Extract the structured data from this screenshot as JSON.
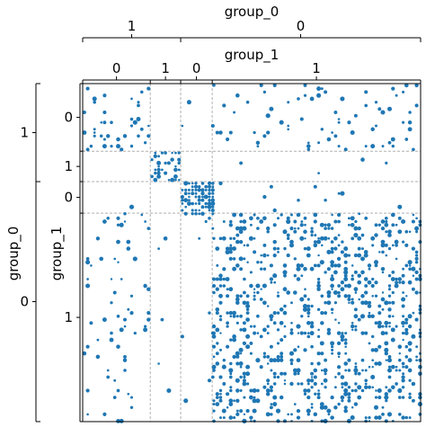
{
  "chart_data": {
    "type": "scatter",
    "title": "",
    "color": "#1f77b4",
    "grid_color": "#b0b0b0",
    "levels": {
      "outer_title": "group_0",
      "inner_title": "group_1",
      "outer": [
        {
          "label": "1",
          "start": 0,
          "end": 87
        },
        {
          "label": "0",
          "start": 87,
          "end": 300
        }
      ],
      "inner": [
        {
          "label": "0",
          "start": 0,
          "end": 60
        },
        {
          "label": "1",
          "start": 60,
          "end": 87
        },
        {
          "label": "0",
          "start": 87,
          "end": 115
        },
        {
          "label": "1",
          "start": 115,
          "end": 300
        }
      ]
    },
    "axis_range": [
      0,
      300
    ],
    "blocks": [
      {
        "row": 0,
        "col": 0,
        "density": 0.1
      },
      {
        "row": 0,
        "col": 1,
        "density": 0.0
      },
      {
        "row": 0,
        "col": 2,
        "density": 0.005
      },
      {
        "row": 0,
        "col": 3,
        "density": 0.07
      },
      {
        "row": 1,
        "col": 0,
        "density": 0.0
      },
      {
        "row": 1,
        "col": 1,
        "density": 0.45
      },
      {
        "row": 1,
        "col": 2,
        "density": 0.0
      },
      {
        "row": 1,
        "col": 3,
        "density": 0.01
      },
      {
        "row": 2,
        "col": 0,
        "density": 0.006
      },
      {
        "row": 2,
        "col": 1,
        "density": 0.0
      },
      {
        "row": 2,
        "col": 2,
        "density": 0.75
      },
      {
        "row": 2,
        "col": 3,
        "density": 0.012
      },
      {
        "row": 3,
        "col": 0,
        "density": 0.05
      },
      {
        "row": 3,
        "col": 1,
        "density": 0.006
      },
      {
        "row": 3,
        "col": 2,
        "density": 0.012
      },
      {
        "row": 3,
        "col": 3,
        "density": 0.22
      }
    ]
  }
}
